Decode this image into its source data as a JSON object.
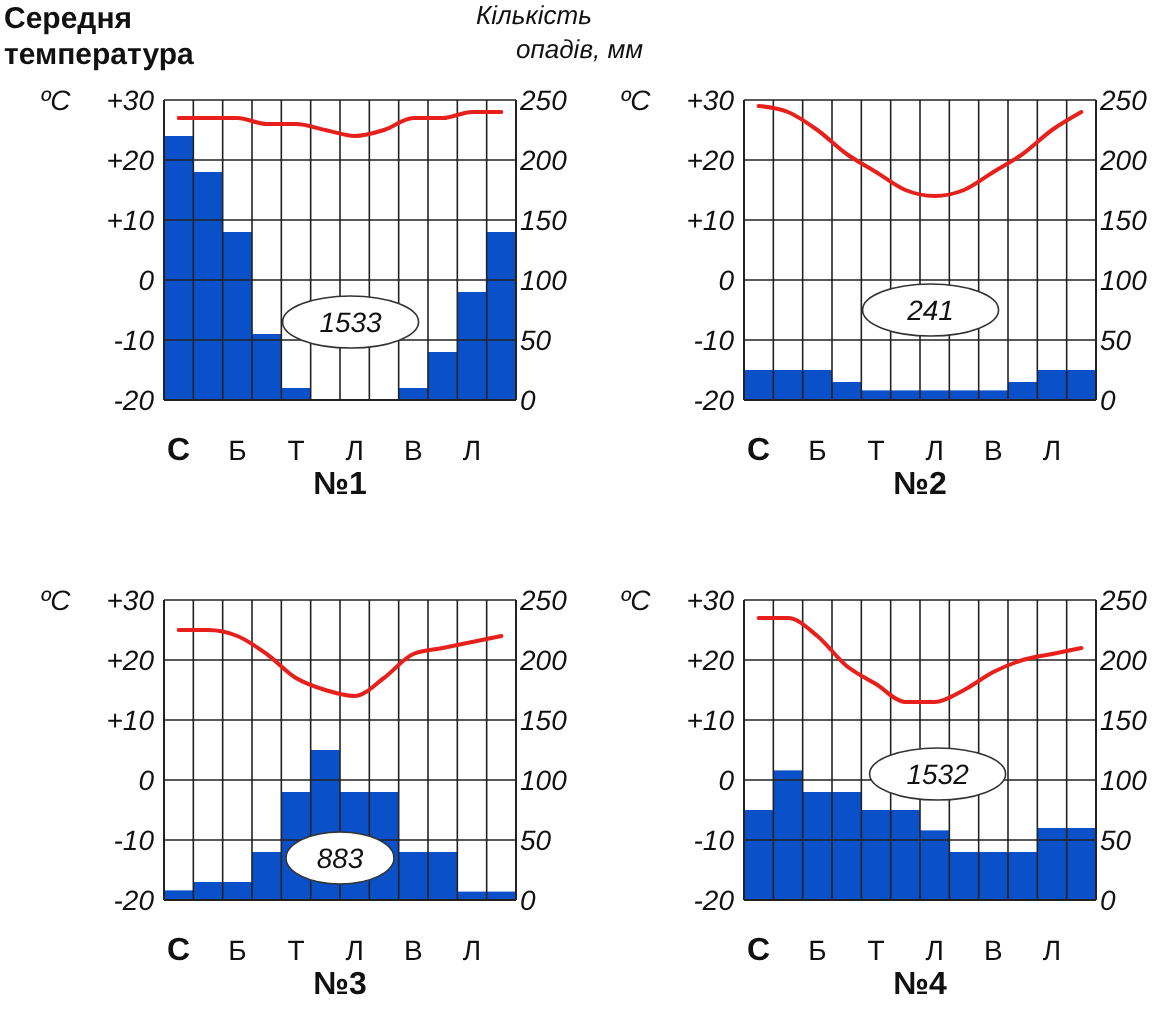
{
  "chart_data": [
    {
      "type": "bar",
      "title": "Середня температура",
      "y2label": "Кількість опадів, мм",
      "ylabel": "ºС",
      "xlabel": "№1",
      "categories": [
        "С",
        null,
        "Б",
        null,
        "Т",
        null,
        "Л",
        null,
        "В",
        null,
        "Л",
        null
      ],
      "series": [
        {
          "axis": "y2",
          "color": "#0a50c8",
          "values": [
            220,
            190,
            140,
            55,
            10,
            0,
            0,
            0,
            10,
            40,
            90,
            140
          ]
        },
        {
          "type": "line",
          "color": "#e8201c",
          "values": [
            27,
            27,
            27,
            26,
            26,
            25,
            24,
            25,
            27,
            27,
            28,
            28
          ]
        }
      ],
      "ylim": [
        -20,
        30
      ],
      "yticks": [
        -20,
        -10,
        0,
        {
          "value": 10,
          "label": "+10"
        },
        {
          "value": 20,
          "label": "+20"
        },
        {
          "value": 30,
          "label": "+30"
        }
      ],
      "y2lim": [
        0,
        250
      ],
      "y2ticks": [
        0,
        50,
        100,
        150,
        200,
        250
      ],
      "grid": true,
      "annotations": [
        "1533"
      ]
    },
    {
      "type": "bar",
      "ylabel": "ºС",
      "xlabel": "№2",
      "categories": [
        "С",
        null,
        "Б",
        null,
        "Т",
        null,
        "Л",
        null,
        "В",
        null,
        "Л",
        null
      ],
      "series": [
        {
          "axis": "y2",
          "color": "#0a50c8",
          "values": [
            25,
            25,
            25,
            15,
            8,
            8,
            8,
            8,
            8,
            15,
            25,
            25
          ]
        },
        {
          "type": "line",
          "color": "#e8201c",
          "values": [
            29,
            28,
            25,
            21,
            18,
            15,
            14,
            15,
            18,
            21,
            25,
            28
          ]
        }
      ],
      "ylim": [
        -20,
        30
      ],
      "yticks": [
        -20,
        -10,
        0,
        {
          "value": 10,
          "label": "+10"
        },
        {
          "value": 20,
          "label": "+20"
        },
        {
          "value": 30,
          "label": "+30"
        }
      ],
      "y2lim": [
        0,
        250
      ],
      "y2ticks": [
        0,
        50,
        100,
        150,
        200,
        250
      ],
      "grid": true,
      "annotations": [
        "241"
      ]
    },
    {
      "type": "bar",
      "ylabel": "ºС",
      "xlabel": "№3",
      "categories": [
        "С",
        null,
        "Б",
        null,
        "Т",
        null,
        "Л",
        null,
        "В",
        null,
        "Л",
        null
      ],
      "series": [
        {
          "axis": "y2",
          "color": "#0a50c8",
          "values": [
            8,
            15,
            15,
            40,
            90,
            125,
            90,
            90,
            40,
            40,
            7,
            7
          ]
        },
        {
          "type": "line",
          "color": "#e8201c",
          "values": [
            25,
            25,
            24,
            21,
            17,
            15,
            14,
            17,
            21,
            22,
            23,
            24
          ]
        }
      ],
      "ylim": [
        -20,
        30
      ],
      "yticks": [
        -20,
        -10,
        0,
        {
          "value": 10,
          "label": "+10"
        },
        {
          "value": 20,
          "label": "+20"
        },
        {
          "value": 30,
          "label": "+30"
        }
      ],
      "y2lim": [
        0,
        250
      ],
      "y2ticks": [
        0,
        50,
        100,
        150,
        200,
        250
      ],
      "grid": true,
      "annotations": [
        "883"
      ]
    },
    {
      "type": "bar",
      "ylabel": "ºС",
      "xlabel": "№4",
      "categories": [
        "С",
        null,
        "Б",
        null,
        "Т",
        null,
        "Л",
        null,
        "В",
        null,
        "Л",
        null
      ],
      "series": [
        {
          "axis": "y2",
          "color": "#0a50c8",
          "values": [
            75,
            108,
            90,
            90,
            75,
            75,
            58,
            40,
            40,
            40,
            60,
            60
          ]
        },
        {
          "type": "line",
          "color": "#e8201c",
          "values": [
            27,
            27,
            24,
            19,
            16,
            13,
            13,
            15,
            18,
            20,
            21,
            22
          ]
        }
      ],
      "ylim": [
        -20,
        30
      ],
      "yticks": [
        -20,
        -10,
        0,
        {
          "value": 10,
          "label": "+10"
        },
        {
          "value": 20,
          "label": "+20"
        },
        {
          "value": 30,
          "label": "+30"
        }
      ],
      "y2lim": [
        0,
        250
      ],
      "y2ticks": [
        0,
        50,
        100,
        150,
        200,
        250
      ],
      "grid": true,
      "annotations": [
        "1532"
      ]
    }
  ]
}
